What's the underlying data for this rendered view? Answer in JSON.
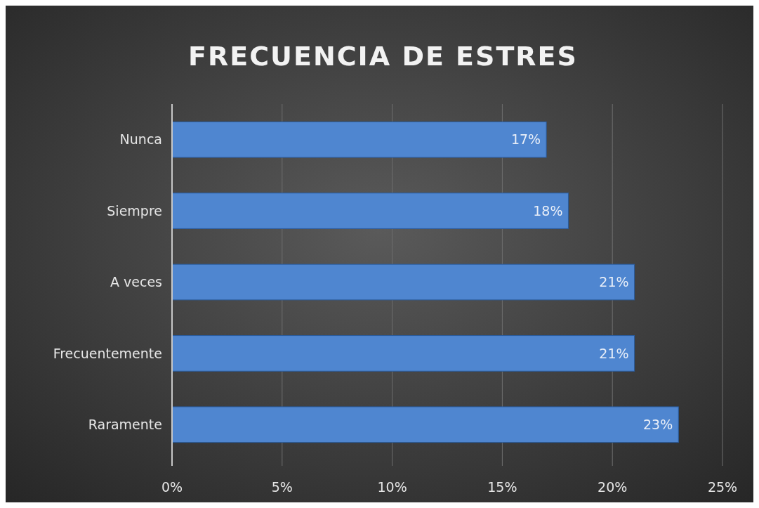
{
  "chart_data": {
    "type": "bar",
    "orientation": "horizontal",
    "title": "FRECUENCIA DE ESTRES",
    "categories": [
      "Nunca",
      "Siempre",
      "A veces",
      "Frecuentemente",
      "Raramente"
    ],
    "values": [
      17,
      18,
      21,
      21,
      23
    ],
    "value_labels": [
      "17%",
      "18%",
      "21%",
      "21%",
      "23%"
    ],
    "color": "#4f86d0",
    "xlim": [
      0,
      25
    ],
    "xticks": [
      {
        "value": 0,
        "label": "0%"
      },
      {
        "value": 5,
        "label": "5%"
      },
      {
        "value": 10,
        "label": "10%"
      },
      {
        "value": 15,
        "label": "15%"
      },
      {
        "value": 20,
        "label": "20%"
      },
      {
        "value": 25,
        "label": "25%"
      }
    ],
    "grid": "x"
  }
}
